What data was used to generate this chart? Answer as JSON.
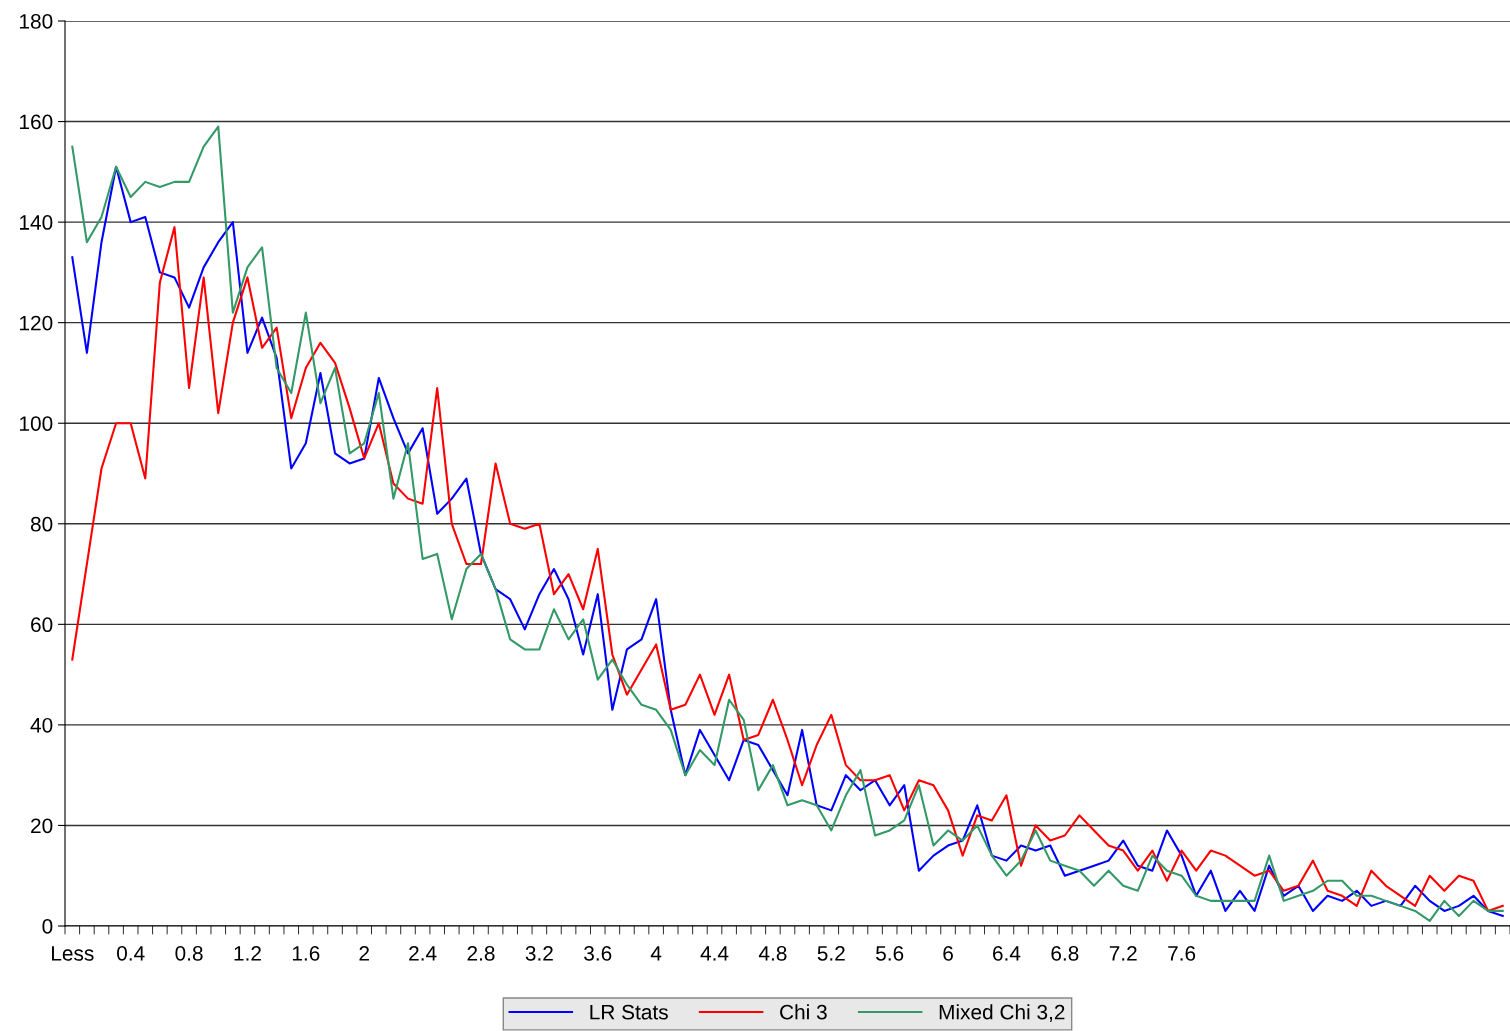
{
  "chart_data": {
    "type": "line",
    "categories": [
      "Less",
      null,
      null,
      null,
      "0.4",
      null,
      null,
      null,
      "0.8",
      null,
      null,
      null,
      "1.2",
      null,
      null,
      null,
      "1.6",
      null,
      null,
      null,
      "2",
      null,
      null,
      null,
      "2.4",
      null,
      null,
      null,
      "2.8",
      null,
      null,
      null,
      "3.2",
      null,
      null,
      null,
      "3.6",
      null,
      null,
      null,
      "4",
      null,
      null,
      null,
      "4.4",
      null,
      null,
      null,
      "4.8",
      null,
      null,
      null,
      "5.2",
      null,
      null,
      null,
      "5.6",
      null,
      null,
      null,
      "6",
      null,
      null,
      null,
      "6.4",
      null,
      null,
      null,
      "6.8",
      null,
      null,
      null,
      "7.2",
      null,
      null,
      null,
      "7.6",
      null,
      null,
      null,
      null,
      null,
      null,
      null,
      null,
      null,
      null,
      null,
      null,
      null,
      null,
      null,
      null,
      null,
      null,
      null,
      null,
      null,
      null
    ],
    "series": [
      {
        "name": "LR Stats",
        "color": "#0000ff",
        "values": [
          133,
          114,
          136,
          151,
          140,
          141,
          130,
          129,
          123,
          131,
          136,
          140,
          114,
          121,
          113,
          91,
          96,
          110,
          94,
          92,
          93,
          109,
          101,
          94,
          99,
          82,
          85,
          89,
          74,
          67,
          65,
          59,
          66,
          71,
          65,
          54,
          66,
          43,
          55,
          57,
          65,
          43,
          30,
          39,
          34,
          29,
          37,
          36,
          31,
          26,
          39,
          24,
          23,
          30,
          27,
          29,
          24,
          28,
          11,
          14,
          16,
          17,
          24,
          14,
          13,
          16,
          15,
          16,
          10,
          11,
          12,
          13,
          17,
          12,
          11,
          19,
          14,
          6,
          11,
          3,
          7,
          3,
          12,
          6,
          8,
          3,
          6,
          5,
          7,
          4,
          5,
          4,
          8,
          5,
          3,
          4,
          6,
          3,
          2
        ]
      },
      {
        "name": "Chi 3",
        "color": "#ff0000",
        "values": [
          53,
          72,
          91,
          100,
          100,
          89,
          128,
          139,
          107,
          129,
          102,
          120,
          129,
          115,
          119,
          101,
          111,
          116,
          112,
          103,
          93,
          100,
          88,
          85,
          84,
          107,
          80,
          72,
          72,
          92,
          80,
          79,
          80,
          66,
          70,
          63,
          75,
          54,
          46,
          51,
          56,
          43,
          44,
          50,
          42,
          50,
          37,
          38,
          45,
          37,
          28,
          36,
          42,
          32,
          29,
          29,
          30,
          23,
          29,
          28,
          23,
          14,
          22,
          21,
          26,
          12,
          20,
          17,
          18,
          22,
          19,
          16,
          15,
          11,
          15,
          9,
          15,
          11,
          15,
          14,
          12,
          10,
          11,
          7,
          8,
          13,
          7,
          6,
          4,
          11,
          8,
          6,
          4,
          10,
          7,
          10,
          9,
          3,
          4
        ]
      },
      {
        "name": "Mixed Chi 3,2",
        "color": "#339966",
        "values": [
          155,
          136,
          141,
          151,
          145,
          148,
          147,
          148,
          148,
          155,
          159,
          122,
          131,
          135,
          111,
          106,
          122,
          104,
          111,
          94,
          96,
          106,
          85,
          96,
          73,
          74,
          61,
          71,
          74,
          67,
          57,
          55,
          55,
          63,
          57,
          61,
          49,
          53,
          48,
          44,
          43,
          39,
          30,
          35,
          32,
          45,
          41,
          27,
          32,
          24,
          25,
          24,
          19,
          26,
          31,
          18,
          19,
          21,
          28,
          16,
          19,
          17,
          20,
          14,
          10,
          13,
          19,
          13,
          12,
          11,
          8,
          11,
          8,
          7,
          14,
          11,
          10,
          6,
          5,
          5,
          5,
          5,
          14,
          5,
          6,
          7,
          9,
          9,
          6,
          6,
          5,
          4,
          3,
          1,
          5,
          2,
          5,
          3,
          3
        ]
      }
    ],
    "ylim": [
      0,
      180
    ],
    "yticks": [
      0,
      20,
      40,
      60,
      80,
      100,
      120,
      140,
      160,
      180
    ],
    "grid": "y",
    "legend": "bottom",
    "marker": "none",
    "line_style": "solid"
  }
}
